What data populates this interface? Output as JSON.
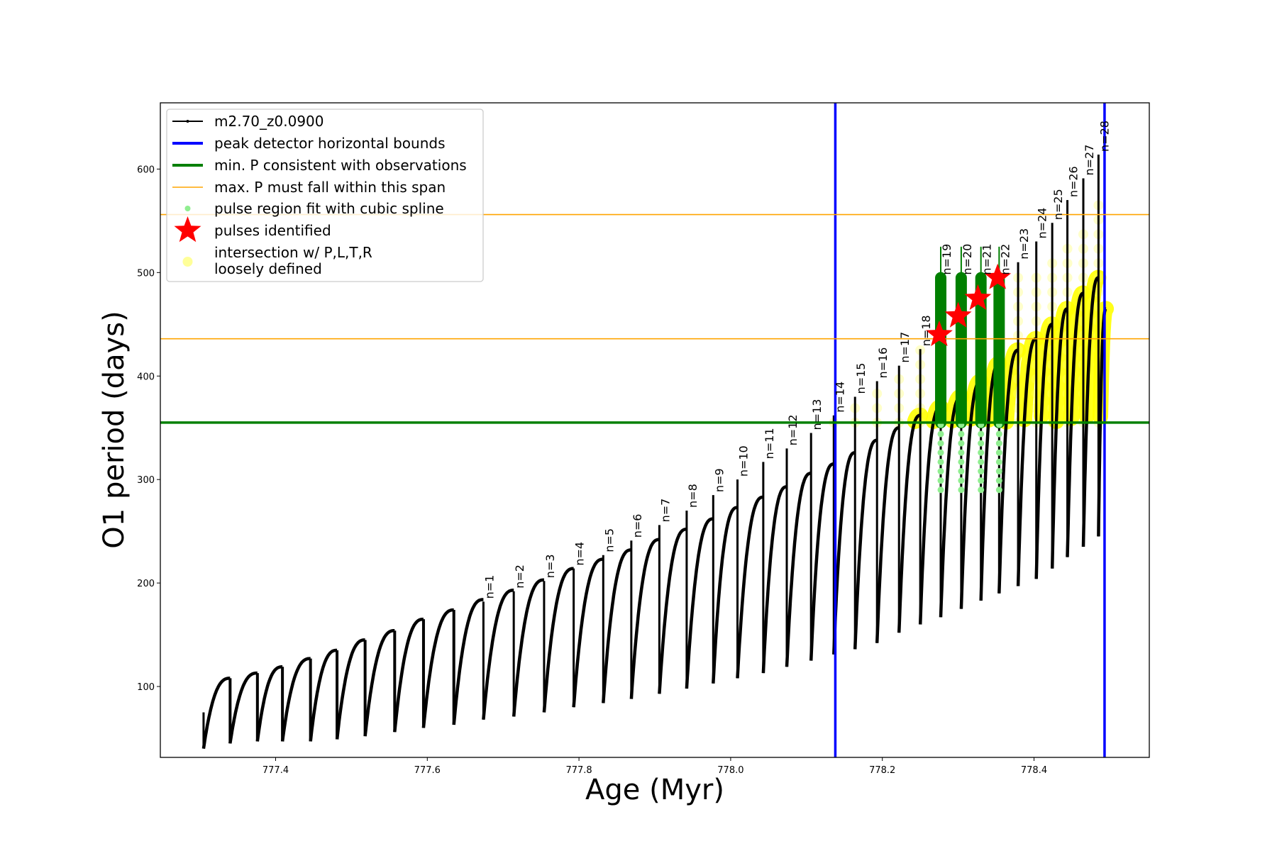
{
  "chart_data": {
    "type": "line",
    "title": "",
    "xlabel": "Age (Myr)",
    "ylabel": "O1 period (days)",
    "xlim": [
      777.248,
      778.552
    ],
    "ylim": [
      31.5,
      664
    ],
    "xticks": [
      777.4,
      777.6,
      777.8,
      778.0,
      778.2,
      778.4
    ],
    "xtick_labels": [
      "777.4",
      "777.6",
      "777.8",
      "778.0",
      "778.2",
      "778.4"
    ],
    "yticks": [
      100,
      200,
      300,
      400,
      500,
      600
    ],
    "ytick_labels": [
      "100",
      "200",
      "300",
      "400",
      "500",
      "600"
    ],
    "grid": false,
    "legend_position": "top-left",
    "legend": [
      {
        "label": "m2.70_z0.0900",
        "kind": "line-dots",
        "color": "#000000"
      },
      {
        "label": "peak detector horizontal bounds",
        "kind": "line-thick",
        "color": "#0000ff"
      },
      {
        "label": "min. P consistent with observations",
        "kind": "line-thick",
        "color": "#008000"
      },
      {
        "label": "max. P must fall within this span",
        "kind": "line-thin",
        "color": "#ffa500"
      },
      {
        "label": "pulse region fit with cubic spline",
        "kind": "dot",
        "color": "#90ee90"
      },
      {
        "label": "pulses identified",
        "kind": "star",
        "color": "#ff0000"
      },
      {
        "label": "intersection w/ P,L,T,R",
        "label2": "loosely defined",
        "kind": "circle",
        "color": "#ffff99"
      }
    ],
    "series_start": {
      "age": 777.305,
      "min": 40,
      "spike": 75
    },
    "cycles": [
      {
        "n": null,
        "age": 777.34,
        "peak": 108,
        "spike": null,
        "min": 45
      },
      {
        "n": null,
        "age": 777.376,
        "peak": 113,
        "spike": null,
        "min": 47
      },
      {
        "n": null,
        "age": 777.409,
        "peak": 119,
        "spike": null,
        "min": 47
      },
      {
        "n": null,
        "age": 777.446,
        "peak": 127,
        "spike": null,
        "min": 47
      },
      {
        "n": null,
        "age": 777.481,
        "peak": 135,
        "spike": null,
        "min": 49
      },
      {
        "n": null,
        "age": 777.518,
        "peak": 145,
        "spike": null,
        "min": 52
      },
      {
        "n": null,
        "age": 777.557,
        "peak": 154,
        "spike": null,
        "min": 56
      },
      {
        "n": null,
        "age": 777.595,
        "peak": 165,
        "spike": null,
        "min": 60
      },
      {
        "n": null,
        "age": 777.635,
        "peak": 174,
        "spike": null,
        "min": 63
      },
      {
        "n": 1,
        "label": "n=1",
        "age": 777.674,
        "peak": 184,
        "spike": 182,
        "min": 68
      },
      {
        "n": 2,
        "label": "n=2",
        "age": 777.714,
        "peak": 193,
        "spike": 192,
        "min": 71
      },
      {
        "n": 3,
        "label": "n=3",
        "age": 777.754,
        "peak": 203,
        "spike": 202,
        "min": 75
      },
      {
        "n": 4,
        "label": "n=4",
        "age": 777.793,
        "peak": 214,
        "spike": 214,
        "min": 80
      },
      {
        "n": 5,
        "label": "n=5",
        "age": 777.832,
        "peak": 223,
        "spike": 227,
        "min": 84
      },
      {
        "n": 6,
        "label": "n=6",
        "age": 777.869,
        "peak": 232,
        "spike": 241,
        "min": 88
      },
      {
        "n": 7,
        "label": "n=7",
        "age": 777.906,
        "peak": 242,
        "spike": 256,
        "min": 93
      },
      {
        "n": 8,
        "label": "n=8",
        "age": 777.942,
        "peak": 252,
        "spike": 270,
        "min": 98
      },
      {
        "n": 9,
        "label": "n=9",
        "age": 777.977,
        "peak": 262,
        "spike": 285,
        "min": 103
      },
      {
        "n": 10,
        "label": "n=10",
        "age": 778.009,
        "peak": 273,
        "spike": 300,
        "min": 108
      },
      {
        "n": 11,
        "label": "n=11",
        "age": 778.043,
        "peak": 283,
        "spike": 317,
        "min": 113
      },
      {
        "n": 12,
        "label": "n=12",
        "age": 778.074,
        "peak": 293,
        "spike": 330,
        "min": 119
      },
      {
        "n": 13,
        "label": "n=13",
        "age": 778.106,
        "peak": 306,
        "spike": 345,
        "min": 125
      },
      {
        "n": 14,
        "label": "n=14",
        "age": 778.136,
        "peak": 315,
        "spike": 362,
        "min": 131
      },
      {
        "n": 15,
        "label": "n=15",
        "age": 778.164,
        "peak": 326,
        "spike": 380,
        "min": 136
      },
      {
        "n": 16,
        "label": "n=16",
        "age": 778.193,
        "peak": 338,
        "spike": 395,
        "min": 142
      },
      {
        "n": 17,
        "label": "n=17",
        "age": 778.222,
        "peak": 350,
        "spike": 410,
        "min": 152
      },
      {
        "n": 18,
        "label": "n=18",
        "age": 778.25,
        "peak": 362,
        "spike": 426,
        "min": 160
      },
      {
        "n": 19,
        "label": "n=19",
        "age": 778.277,
        "peak": 370,
        "spike": 495,
        "min": 167
      },
      {
        "n": 20,
        "label": "n=20",
        "age": 778.304,
        "peak": 380,
        "spike": 495,
        "min": 175
      },
      {
        "n": 21,
        "label": "n=21",
        "age": 778.33,
        "peak": 395,
        "spike": 495,
        "min": 183
      },
      {
        "n": 22,
        "label": "n=22",
        "age": 778.354,
        "peak": 412,
        "spike": 495,
        "min": 190
      },
      {
        "n": 23,
        "label": "n=23",
        "age": 778.379,
        "peak": 425,
        "spike": 510,
        "min": 197
      },
      {
        "n": 24,
        "label": "n=24",
        "age": 778.403,
        "peak": 436,
        "spike": 530,
        "min": 204
      },
      {
        "n": 25,
        "label": "n=25",
        "age": 778.424,
        "peak": 450,
        "spike": 548,
        "min": 214
      },
      {
        "n": 26,
        "label": "n=26",
        "age": 778.444,
        "peak": 465,
        "spike": 570,
        "min": 225
      },
      {
        "n": 27,
        "label": "n=27",
        "age": 778.465,
        "peak": 480,
        "spike": 591,
        "min": 235
      },
      {
        "n": 28,
        "label": "n=28",
        "age": 778.485,
        "peak": 495,
        "spike": 614,
        "min": 245
      }
    ],
    "tail": {
      "age": 778.495,
      "peak": 465
    },
    "vertical_bounds": [
      778.138,
      778.493
    ],
    "min_period_line": 355,
    "max_period_span": [
      436,
      556
    ],
    "pulses_identified": [
      {
        "n": 19,
        "age": 778.275,
        "period": 440
      },
      {
        "n": 20,
        "age": 778.3,
        "period": 458
      },
      {
        "n": 21,
        "age": 778.326,
        "period": 475
      },
      {
        "n": 22,
        "age": 778.352,
        "period": 495
      }
    ],
    "spline_region_cycles": [
      19,
      20,
      21,
      22
    ],
    "spline_region_range": [
      290,
      525
    ],
    "colors": {
      "curve": "#000000",
      "bounds": "#0000ff",
      "minP": "#008000",
      "maxP": "#ffa500",
      "spline": "#90ee90",
      "splineDark": "#008000",
      "star": "#ff0000",
      "yellow": "#ffff00"
    }
  }
}
